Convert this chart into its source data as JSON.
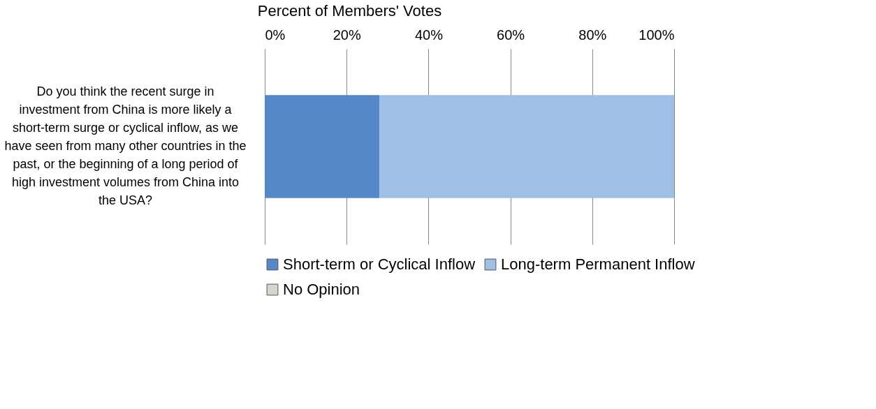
{
  "chart_data": {
    "type": "bar",
    "orientation": "horizontal",
    "stacked": true,
    "title": "Percent of Members' Votes",
    "categories": [
      "Do you think the recent surge in investment from China is more likely a short-term surge or cyclical inflow, as we have seen from many other countries in the past, or the beginning of a long period of high investment volumes from China into the USA?"
    ],
    "series": [
      {
        "name": "Short-term or Cyclical Inflow",
        "color": "#5588c8",
        "values": [
          28
        ]
      },
      {
        "name": "Long-term Permanent Inflow",
        "color": "#a0bfe4",
        "values": [
          72
        ]
      },
      {
        "name": "No Opinion",
        "color": "#d8d5cc",
        "values": [
          0
        ]
      }
    ],
    "xlim": [
      0,
      100
    ],
    "xticks": [
      {
        "value": 0,
        "label": "0%"
      },
      {
        "value": 20,
        "label": "20%"
      },
      {
        "value": 40,
        "label": "40%"
      },
      {
        "value": 60,
        "label": "60%"
      },
      {
        "value": 80,
        "label": "80%"
      },
      {
        "value": 100,
        "label": "100%"
      }
    ],
    "grid": "x",
    "legend": "bottom"
  }
}
